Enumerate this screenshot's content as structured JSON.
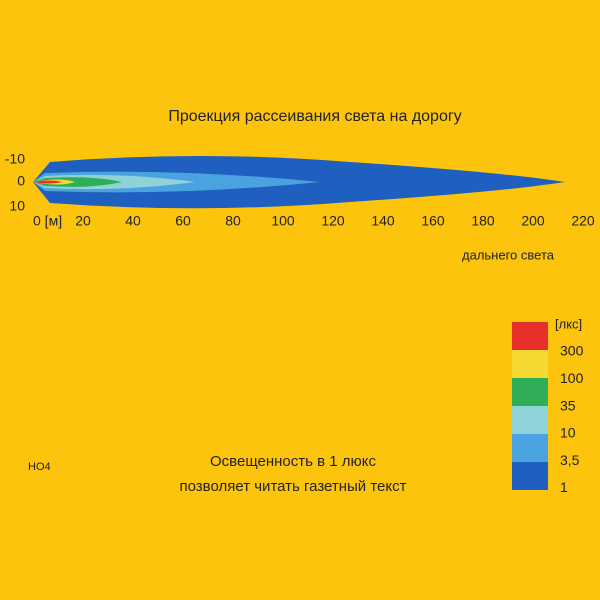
{
  "title": "Проекция рассеивания света на дорогу",
  "plot": {
    "y_ticks": [
      "-10",
      "0",
      "10"
    ],
    "x_ticks": [
      "0 [м]",
      "20",
      "40",
      "60",
      "80",
      "100",
      "120",
      "140",
      "160",
      "180",
      "200",
      "220"
    ]
  },
  "beam_label": "дальнего света",
  "legend": {
    "unit": "[лкс]",
    "levels": [
      "300",
      "100",
      "35",
      "10",
      "3,5",
      "1"
    ]
  },
  "code": "НО4",
  "caption": [
    "Освещенность в 1 люкс",
    "позволяет читать газетный текст"
  ]
}
